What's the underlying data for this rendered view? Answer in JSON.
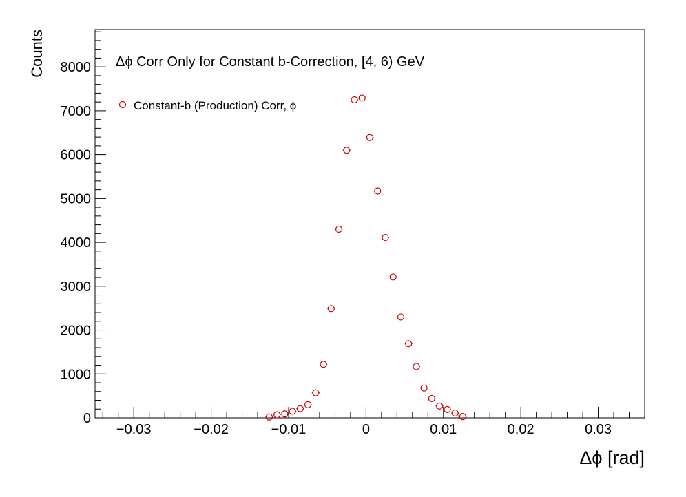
{
  "chart_data": {
    "type": "scatter",
    "title": "",
    "xlabel": "Δϕ  [rad]",
    "ylabel": "Counts",
    "xlim": [
      -0.035,
      0.036
    ],
    "ylim": [
      0,
      8850
    ],
    "x_ticks": [
      -0.03,
      -0.02,
      -0.01,
      0,
      0.01,
      0.02,
      0.03
    ],
    "x_tick_labels": [
      "−0.03",
      "−0.02",
      "−0.01",
      "0",
      "0.01",
      "0.02",
      "0.03"
    ],
    "y_ticks": [
      0,
      1000,
      2000,
      3000,
      4000,
      5000,
      6000,
      7000,
      8000
    ],
    "y_tick_labels": [
      "0",
      "1000",
      "2000",
      "3000",
      "4000",
      "5000",
      "6000",
      "7000",
      "8000"
    ],
    "grid": false,
    "legend_position": "top-left",
    "annotation": "Δϕ Corr Only for Constant b-Correction, [4, 6) GeV",
    "series": [
      {
        "name": "Constant-b (Production) Corr, ϕ",
        "color": "#cc0000",
        "marker": "open-circle",
        "x": [
          -0.0125,
          -0.0115,
          -0.0105,
          -0.0095,
          -0.0085,
          -0.0075,
          -0.0065,
          -0.0055,
          -0.0045,
          -0.0035,
          -0.0025,
          -0.0015,
          -0.0005,
          0.0005,
          0.0015,
          0.0025,
          0.0035,
          0.0045,
          0.0055,
          0.0065,
          0.0075,
          0.0085,
          0.0095,
          0.0105,
          0.0115,
          0.0125
        ],
        "y": [
          20,
          70,
          90,
          150,
          210,
          300,
          570,
          1220,
          2490,
          4300,
          6100,
          7250,
          7290,
          6390,
          5170,
          4110,
          3210,
          2300,
          1690,
          1170,
          680,
          440,
          270,
          190,
          110,
          30
        ]
      }
    ]
  }
}
